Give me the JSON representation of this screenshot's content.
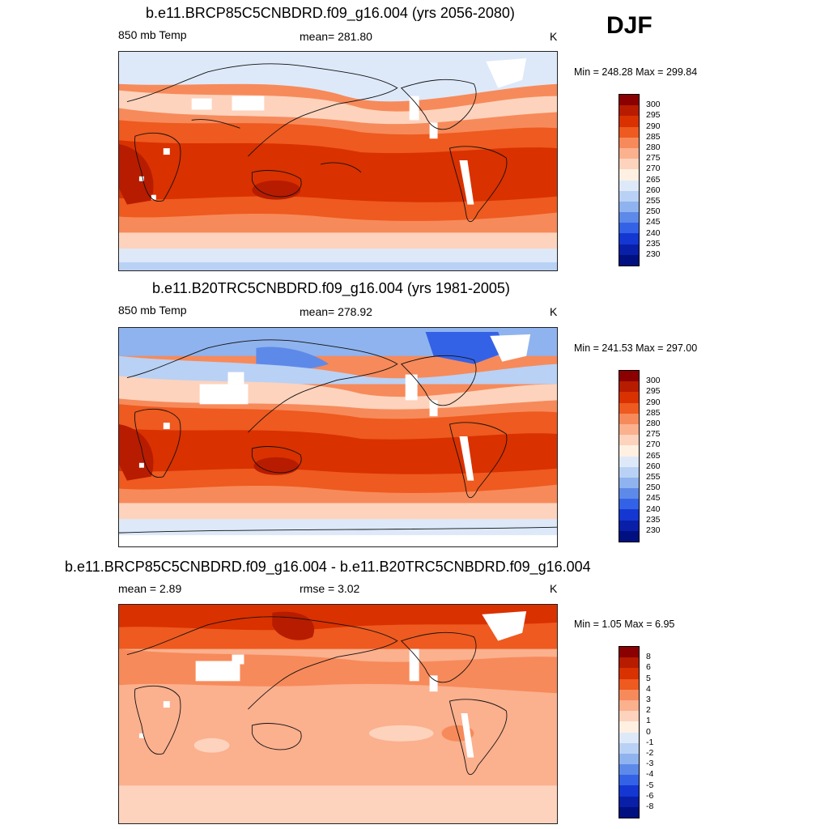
{
  "season": "DJF",
  "panels": [
    {
      "title": "b.e11.BRCP85C5CNBDRD.f09_g16.004 (yrs 2056-2080)",
      "left_label": "850 mb Temp",
      "center_label": "mean= 281.80",
      "units": "K",
      "minmax": "Min = 248.28 Max = 299.84",
      "colorbar_labels": [
        "300",
        "295",
        "290",
        "285",
        "280",
        "275",
        "270",
        "265",
        "260",
        "255",
        "250",
        "245",
        "240",
        "235",
        "230"
      ]
    },
    {
      "title": "b.e11.B20TRC5CNBDRD.f09_g16.004 (yrs 1981-2005)",
      "left_label": "850 mb Temp",
      "center_label": "mean= 278.92",
      "units": "K",
      "minmax": "Min = 241.53 Max = 297.00",
      "colorbar_labels": [
        "300",
        "295",
        "290",
        "285",
        "280",
        "275",
        "270",
        "265",
        "260",
        "255",
        "250",
        "245",
        "240",
        "235",
        "230"
      ]
    },
    {
      "title": "b.e11.BRCP85C5CNBDRD.f09_g16.004 - b.e11.B20TRC5CNBDRD.f09_g16.004",
      "left_label": "mean =   2.89",
      "center_label": "rmse =   3.02",
      "units": "K",
      "minmax": "Min =   1.05 Max =   6.95",
      "colorbar_labels": [
        "8",
        "6",
        "5",
        "4",
        "3",
        "2",
        "1",
        "0",
        "-1",
        "-2",
        "-3",
        "-4",
        "-5",
        "-6",
        "-8"
      ]
    }
  ],
  "palette": [
    "#8b0000",
    "#b71c00",
    "#d93100",
    "#ee5a1f",
    "#f78a5a",
    "#fbb08e",
    "#fdd3bd",
    "#fff0e2",
    "#dde9f9",
    "#b9d1f4",
    "#8fb3ee",
    "#5d8ae9",
    "#3462e6",
    "#1437d2",
    "#0a1fa8",
    "#001080"
  ]
}
